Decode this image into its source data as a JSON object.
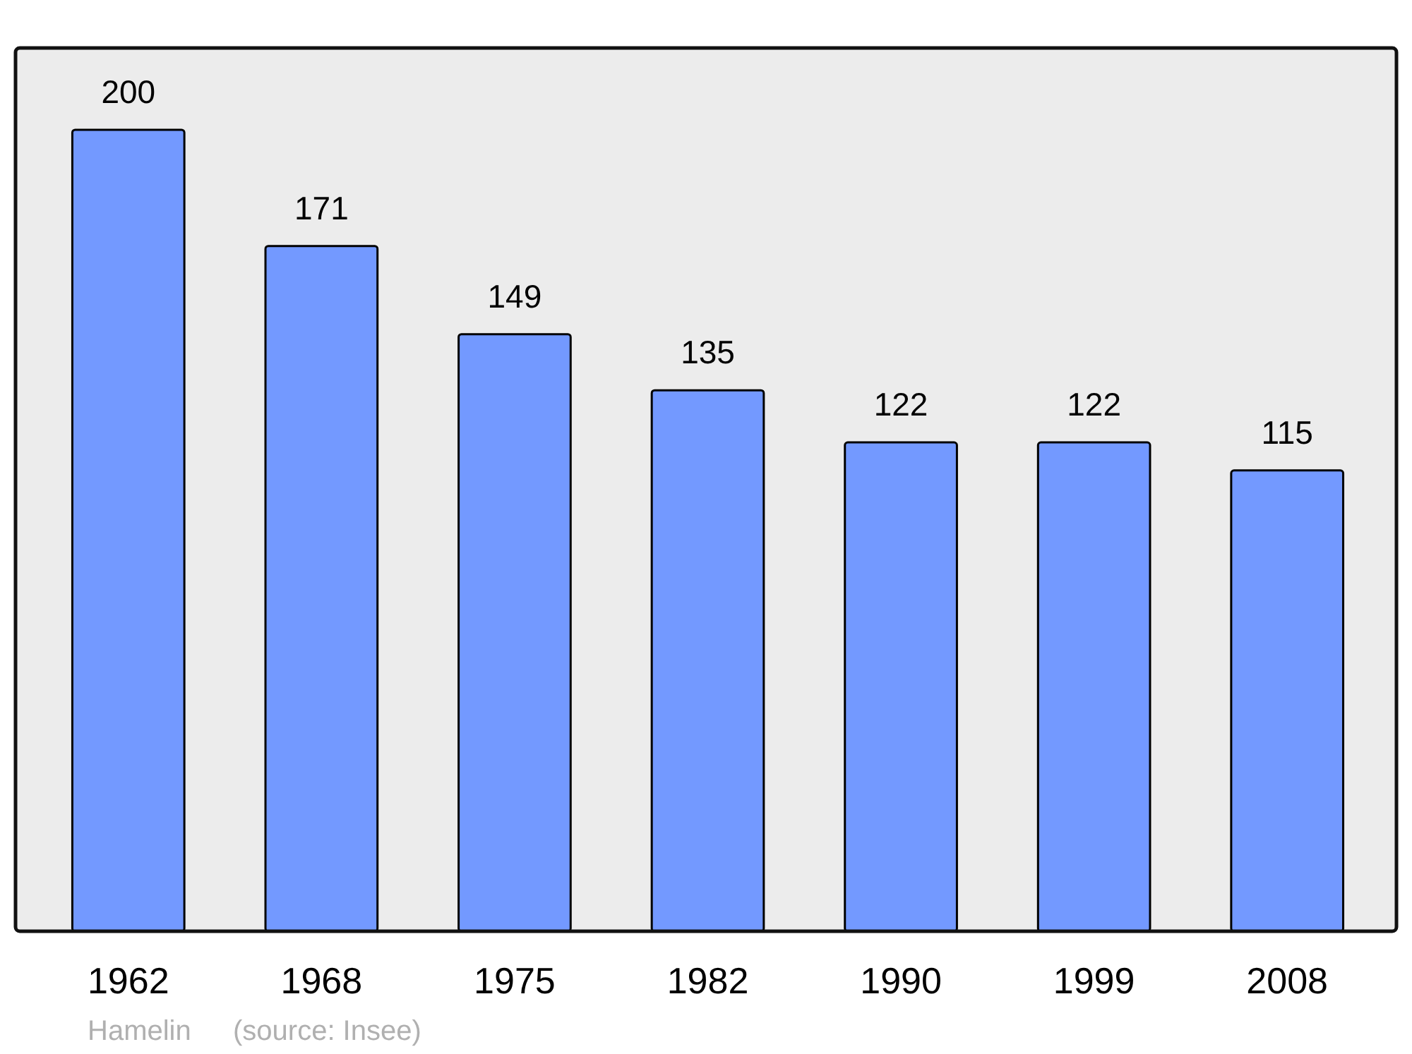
{
  "chart_data": {
    "type": "bar",
    "categories": [
      "1962",
      "1968",
      "1975",
      "1982",
      "1990",
      "1999",
      "2008"
    ],
    "values": [
      200,
      171,
      149,
      135,
      122,
      122,
      115
    ],
    "color": "#7399ff",
    "data_labels": true,
    "annotations": [
      "Hamelin",
      "(source: Insee)"
    ]
  }
}
